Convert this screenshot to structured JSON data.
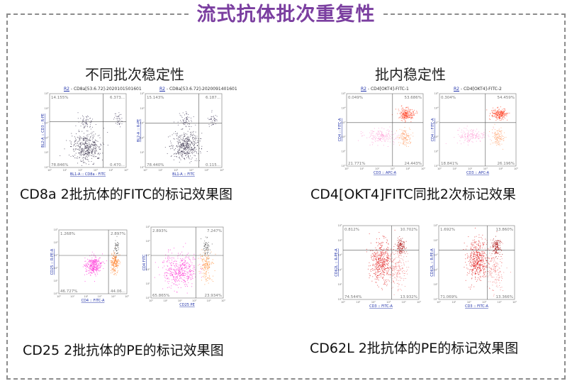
{
  "title": "流式抗体批次重复性",
  "sections": {
    "left_heading": "不同批次稳定性",
    "right_heading": "批内稳定性"
  },
  "captions": {
    "cd8a": "CD8a 2批抗体的FITC的标记效果图",
    "cd4": "CD4[OKT4]FITC同批2次标记效果",
    "cd25": "CD25 2批抗体的PE的标记效果图",
    "cd62l": "CD62L 2批抗体的PE的标记效果图"
  },
  "plots": [
    {
      "id": "cd8a-1",
      "header_pre": "R2",
      "header": " - CD8a[53.6.72]-2020101501601",
      "ylabel": "BL2-A :: CD3 - R-PE",
      "xlabel": "BL1-A :: CD8a - FITC",
      "q": [
        "14.155%",
        "6.373...",
        "78.846%",
        "0.470..."
      ],
      "dot": "#3a3050"
    },
    {
      "id": "cd8a-2",
      "header_pre": "R2",
      "header": " - CD8a[53.6.72]-2020091401601",
      "ylabel": "BL2-A :: R-PE",
      "xlabel": "BL1-A :: FITC",
      "q": [
        "15.143%",
        "6.187...",
        "78.440%",
        "0.115..."
      ],
      "dot": "#3a3050"
    },
    {
      "id": "cd4-1",
      "header_pre": "R2",
      "header": " - CD4[OKT4]-FITC-1",
      "ylabel": "CD4 :: FITC-A",
      "xlabel": "CD3 :: APC-A",
      "q": [
        "0.049%",
        "53.686%",
        "21.771%",
        "24.443%"
      ],
      "dot": "#e8453a"
    },
    {
      "id": "cd4-2",
      "header_pre": "R2",
      "header": " - CD4[OKT4]-FITC-2",
      "ylabel": "CD4 :: FITC-A",
      "xlabel": "CD3 :: APC-A",
      "q": [
        "0.304%",
        "54.459%",
        "18.841%",
        "26.196%"
      ],
      "dot": "#e8453a"
    },
    {
      "id": "cd25-1",
      "header_pre": "",
      "header": "",
      "ylabel": "CD25 :: R-PE-A",
      "xlabel": "CD4 :: FITC-A",
      "q": [
        "1.268%",
        "2.897%",
        "46.727%",
        "44.06..."
      ],
      "dot": "#ff1fd0"
    },
    {
      "id": "cd25-2",
      "header_pre": "",
      "header": "",
      "ylabel": "CD4 FITC",
      "xlabel": "CD25 PE",
      "q": [
        "2.893%",
        "7.247%",
        "65.865%",
        "23.934%"
      ],
      "dot": "#ff1fd0"
    },
    {
      "id": "cd62l-1",
      "header_pre": "",
      "header": "",
      "ylabel": "CD62L :: R-PE-A",
      "xlabel": "CD3 :: FITC-A",
      "q": [
        "0.812%",
        "10.702%",
        "74.544%",
        "13.932%"
      ],
      "dot": "#e01515"
    },
    {
      "id": "cd62l-2",
      "header_pre": "",
      "header": "",
      "ylabel": "CD62L :: R-PE-A",
      "xlabel": "CD3 :: FITC-A",
      "q": [
        "1.692%",
        "13.860%",
        "71.069%",
        "13.366%"
      ],
      "dot": "#e01515"
    }
  ],
  "axis_ticks": [
    "10⁰",
    "10¹",
    "10²",
    "10³",
    "10⁴",
    "10⁵"
  ]
}
